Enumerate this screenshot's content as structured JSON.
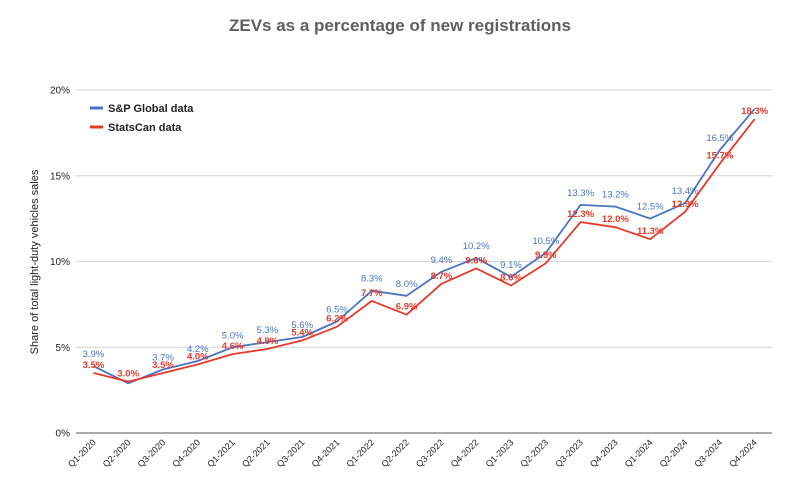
{
  "chart_data": {
    "type": "line",
    "title": "ZEVs as a percentage of new registrations",
    "ylabel": "Share of total light-duty vehicles sales",
    "xlabel": "",
    "ylim": [
      0,
      20
    ],
    "yticks": [
      0,
      5,
      10,
      15,
      20
    ],
    "ytick_labels": [
      "0%",
      "5%",
      "10%",
      "15%",
      "20%"
    ],
    "grid": true,
    "legend_position": "top-left",
    "categories": [
      "Q1-2020",
      "Q2-2020",
      "Q3-2020",
      "Q4-2020",
      "Q1-2021",
      "Q2-2021",
      "Q3-2021",
      "Q4-2021",
      "Q1-2022",
      "Q2-2022",
      "Q3-2022",
      "Q4-2022",
      "Q1-2023",
      "Q2-2023",
      "Q3-2023",
      "Q4-2023",
      "Q1-2024",
      "Q2-2024",
      "Q3-2024",
      "Q4-2024"
    ],
    "series": [
      {
        "name": "S&P Global data",
        "color": "#4a74c2",
        "values": [
          3.9,
          2.9,
          3.7,
          4.2,
          5.0,
          5.3,
          5.6,
          6.5,
          8.3,
          8.0,
          9.4,
          10.2,
          9.1,
          10.5,
          13.3,
          13.2,
          12.5,
          13.4,
          16.5,
          18.9
        ],
        "labels": [
          "3.9%",
          "",
          "3.7%",
          "4.2%",
          "5.0%",
          "5.3%",
          "5.6%",
          "6.5%",
          "8.3%",
          "8.0%",
          "9.4%",
          "10.2%",
          "9.1%",
          "10.5%",
          "13.3%",
          "13.2%",
          "12.5%",
          "13.4%",
          "16.5%",
          ""
        ]
      },
      {
        "name": "StatsCan data",
        "color": "#e53a2b",
        "values": [
          3.5,
          3.0,
          3.5,
          4.0,
          4.6,
          4.9,
          5.4,
          6.2,
          7.7,
          6.9,
          8.7,
          9.6,
          8.6,
          9.9,
          12.3,
          12.0,
          11.3,
          12.9,
          15.7,
          18.3
        ],
        "labels": [
          "3.5%",
          "3.0%",
          "3.5%",
          "4.0%",
          "4.6%",
          "4.9%",
          "5.4%",
          "6.2%",
          "7.7%",
          "6.9%",
          "8.7%",
          "9.6%",
          "8.6%",
          "9.9%",
          "12.3%",
          "12.0%",
          "11.3%",
          "12.9%",
          "15.7%",
          "18.3%"
        ]
      }
    ]
  }
}
